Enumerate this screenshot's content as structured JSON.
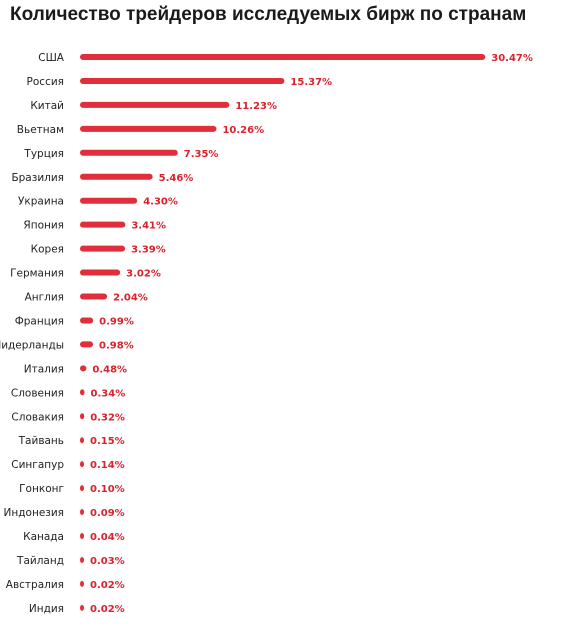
{
  "chart_data": {
    "type": "bar",
    "orientation": "horizontal",
    "title": "Количество трейдеров исследуемых бирж по странам",
    "categories": [
      "США",
      "Россия",
      "Китай",
      "Вьетнам",
      "Турция",
      "Бразилия",
      "Украина",
      "Япония",
      "Корея",
      "Германия",
      "Англия",
      "Франция",
      "Нидерланды",
      "Италия",
      "Словения",
      "Словакия",
      "Тайвань",
      "Сингапур",
      "Гонконг",
      "Индонезия",
      "Канада",
      "Тайланд",
      "Австралия",
      "Индия"
    ],
    "values": [
      30.47,
      15.37,
      11.23,
      10.26,
      7.35,
      5.46,
      4.3,
      3.41,
      3.39,
      3.02,
      2.04,
      0.99,
      0.98,
      0.48,
      0.34,
      0.32,
      0.15,
      0.14,
      0.1,
      0.09,
      0.04,
      0.03,
      0.02,
      0.02
    ],
    "value_labels": [
      "30.47%",
      "15.37%",
      "11.23%",
      "10.26%",
      "7.35%",
      "5.46%",
      "4.30%",
      "3.41%",
      "3.39%",
      "3.02%",
      "2.04%",
      "0.99%",
      "0.98%",
      "0.48%",
      "0.34%",
      "0.32%",
      "0.15%",
      "0.14%",
      "0.10%",
      "0.09%",
      "0.04%",
      "0.03%",
      "0.02%",
      "0.02%"
    ],
    "unit": "%",
    "grid": false,
    "legend": "none",
    "colors": {
      "bar": "#e02f3a",
      "value_label": "#d9232e",
      "category_label": "#222222"
    }
  }
}
